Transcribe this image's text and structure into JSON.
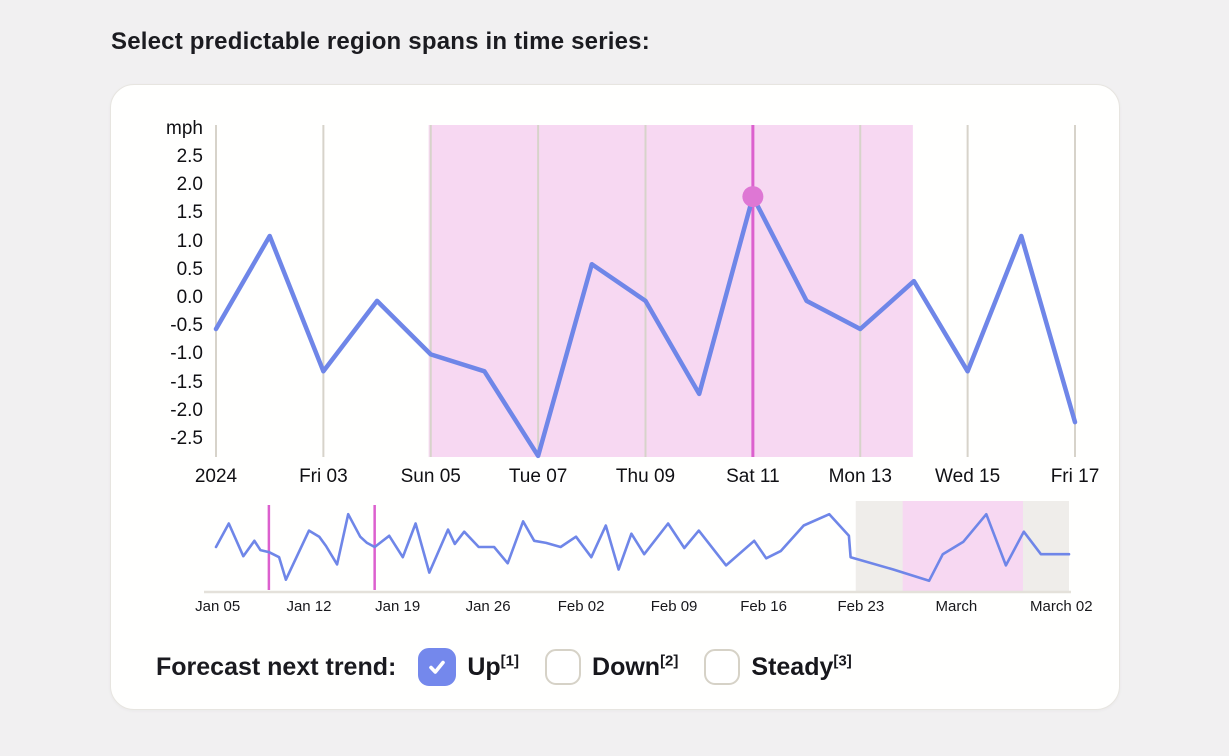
{
  "page": {
    "title": "Select predictable region spans in time series:"
  },
  "colors": {
    "page_bg": "#f1f0f1",
    "card_bg": "#fffffe",
    "accent_blue": "#6f86e8",
    "region_pink": "#f7d8f2",
    "selection_magenta": "#dc60ce",
    "marker_dot_pink": "#de77d4",
    "gridline_gray": "#d7d3ca",
    "overview_context_gray": "#efedea",
    "mini_axis_line": "#e4e1da",
    "checkbox_blue": "#7488ec",
    "checkbox_border": "#d6d2c7",
    "axis_text": "#141417"
  },
  "chart_data": [
    {
      "type": "line",
      "name": "main-series",
      "ylabel": "mph",
      "y_ticks": [
        "2.5",
        "2.0",
        "1.5",
        "1.0",
        "0.5",
        "0.0",
        "-0.5",
        "-1.0",
        "-1.5",
        "-2.0",
        "-2.5"
      ],
      "ylim": [
        -2.82,
        3.07
      ],
      "x_tick_labels": [
        "2024",
        "Fri 03",
        "Sun 05",
        "Tue 07",
        "Thu 09",
        "Sat 11",
        "Mon 13",
        "Wed 15",
        "Fri 17"
      ],
      "x_tick_indices": [
        0,
        2,
        4,
        6,
        8,
        10,
        12,
        14,
        16
      ],
      "values": [
        -0.55,
        1.1,
        -1.3,
        -0.05,
        -1.0,
        -1.3,
        -2.8,
        0.6,
        -0.05,
        -1.7,
        1.8,
        -0.05,
        -0.55,
        0.3,
        -1.3,
        1.1,
        -2.2
      ],
      "grid": "vertical-only",
      "highlight_region": {
        "start_day_index": 3.96,
        "end_day_index": 12.98,
        "from_label": "Sun 05",
        "to_label": "between Mon 13 and Wed 15"
      },
      "selected_point": {
        "day_index": 10,
        "value": 1.8,
        "label": "Sat 11"
      }
    },
    {
      "type": "line",
      "name": "overview-series",
      "x_tick_labels": [
        "Jan 05",
        "Jan 12",
        "Jan 19",
        "Jan 26",
        "Feb 02",
        "Feb 09",
        "Feb 16",
        "Feb 23",
        "March",
        "March 02"
      ],
      "x_tick_fx": [
        0.002,
        0.109,
        0.213,
        0.319,
        0.428,
        0.537,
        0.642,
        0.756,
        0.868,
        0.991
      ],
      "points_fxfy": [
        [
          0.0,
          0.494
        ],
        [
          0.015,
          0.23
        ],
        [
          0.032,
          0.598
        ],
        [
          0.045,
          0.425
        ],
        [
          0.052,
          0.529
        ],
        [
          0.062,
          0.552
        ],
        [
          0.074,
          0.609
        ],
        [
          0.082,
          0.862
        ],
        [
          0.109,
          0.31
        ],
        [
          0.121,
          0.379
        ],
        [
          0.129,
          0.483
        ],
        [
          0.142,
          0.69
        ],
        [
          0.155,
          0.126
        ],
        [
          0.169,
          0.379
        ],
        [
          0.177,
          0.448
        ],
        [
          0.186,
          0.494
        ],
        [
          0.203,
          0.368
        ],
        [
          0.219,
          0.609
        ],
        [
          0.234,
          0.23
        ],
        [
          0.25,
          0.782
        ],
        [
          0.272,
          0.299
        ],
        [
          0.28,
          0.46
        ],
        [
          0.291,
          0.322
        ],
        [
          0.308,
          0.494
        ],
        [
          0.326,
          0.494
        ],
        [
          0.342,
          0.678
        ],
        [
          0.36,
          0.207
        ],
        [
          0.373,
          0.425
        ],
        [
          0.387,
          0.448
        ],
        [
          0.404,
          0.494
        ],
        [
          0.422,
          0.379
        ],
        [
          0.44,
          0.609
        ],
        [
          0.457,
          0.253
        ],
        [
          0.472,
          0.747
        ],
        [
          0.487,
          0.345
        ],
        [
          0.502,
          0.575
        ],
        [
          0.53,
          0.23
        ],
        [
          0.549,
          0.506
        ],
        [
          0.566,
          0.31
        ],
        [
          0.598,
          0.701
        ],
        [
          0.631,
          0.425
        ],
        [
          0.645,
          0.621
        ],
        [
          0.662,
          0.54
        ],
        [
          0.689,
          0.253
        ],
        [
          0.719,
          0.126
        ],
        [
          0.742,
          0.368
        ],
        [
          0.744,
          0.609
        ],
        [
          0.794,
          0.747
        ],
        [
          0.836,
          0.874
        ],
        [
          0.852,
          0.575
        ],
        [
          0.876,
          0.437
        ],
        [
          0.903,
          0.126
        ],
        [
          0.926,
          0.701
        ],
        [
          0.947,
          0.322
        ],
        [
          0.967,
          0.575
        ],
        [
          1.0,
          0.575
        ]
      ],
      "brush_marker_fx": [
        0.062,
        0.186
      ],
      "context_region_fx": [
        0.75,
        1.0
      ],
      "highlight_region_fx": [
        0.805,
        0.946
      ]
    }
  ],
  "forecast": {
    "label": "Forecast next trend:",
    "options": [
      {
        "label": "Up",
        "sup": "[1]",
        "checked": true
      },
      {
        "label": "Down",
        "sup": "[2]",
        "checked": false
      },
      {
        "label": "Steady",
        "sup": "[3]",
        "checked": false
      }
    ]
  }
}
